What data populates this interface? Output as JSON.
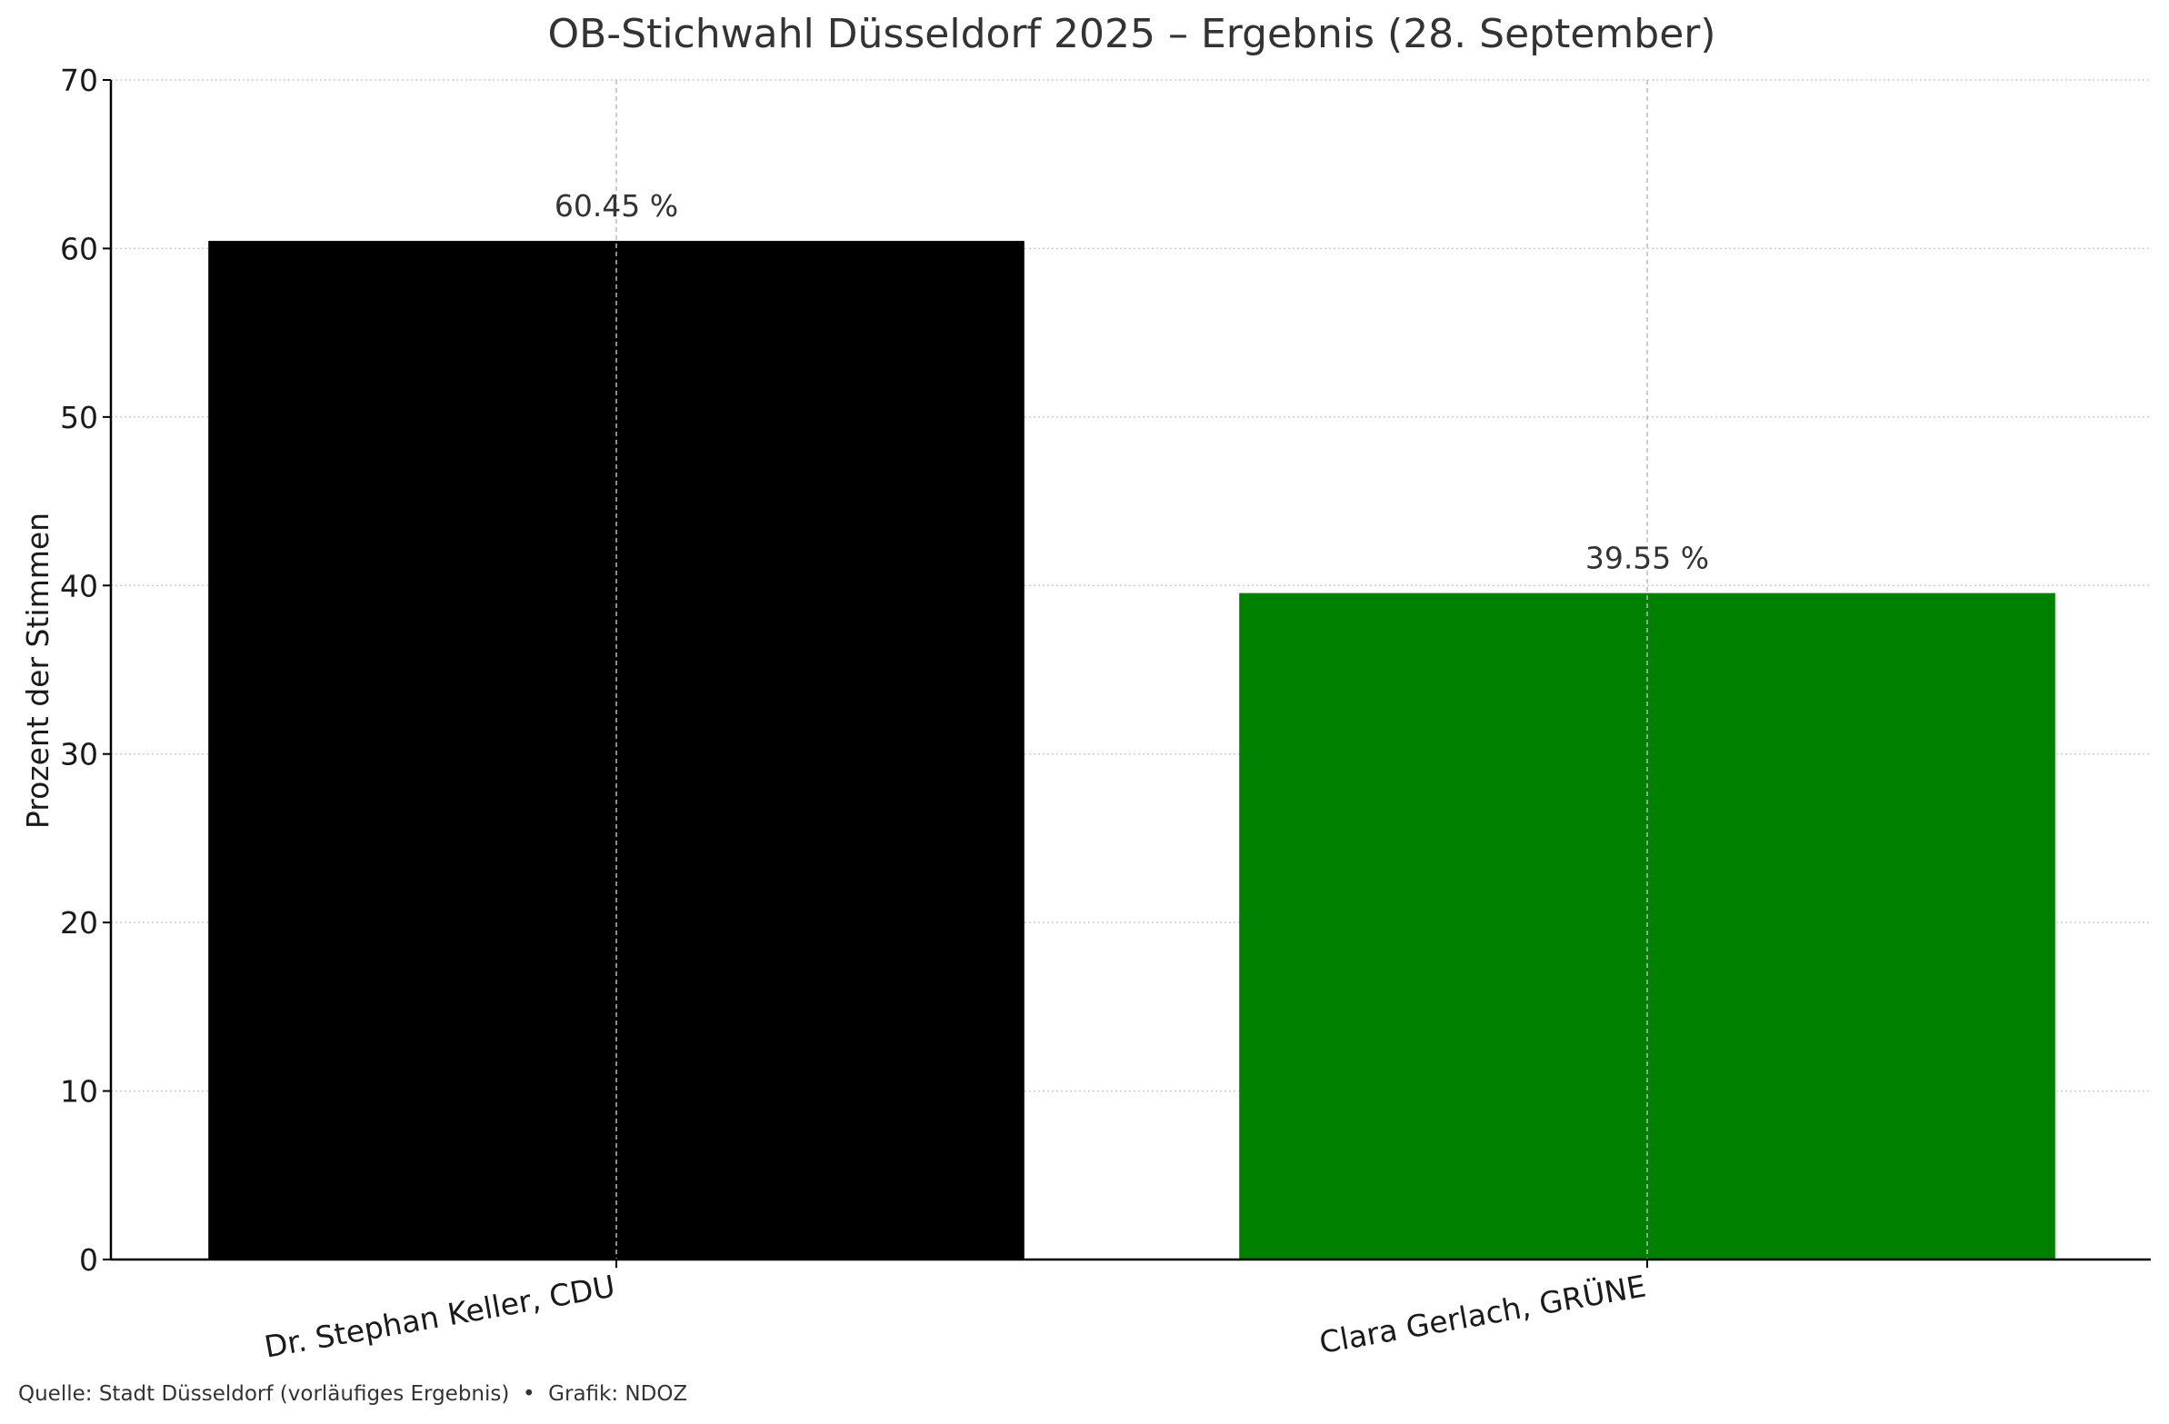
{
  "chart_data": {
    "type": "bar",
    "title": "OB-Stichwahl Düsseldorf 2025 – Ergebnis (28. September)",
    "xlabel": "",
    "ylabel": "Prozent der Stimmen",
    "categories": [
      "Dr. Stephan Keller, CDU",
      "Clara Gerlach, GRÜNE"
    ],
    "values": [
      60.45,
      39.55
    ],
    "value_labels": [
      "60.45 %",
      "39.55 %"
    ],
    "bar_colors": [
      "#000000",
      "#008000"
    ],
    "ylim": [
      0,
      70
    ],
    "yticks": [
      0,
      10,
      20,
      30,
      40,
      50,
      60,
      70
    ],
    "grid": true,
    "grid_style": "dotted",
    "legend": "none"
  },
  "footer": {
    "source": "Quelle: Stadt Düsseldorf (vorläufiges Ergebnis)  •  Grafik: NDOZ"
  }
}
